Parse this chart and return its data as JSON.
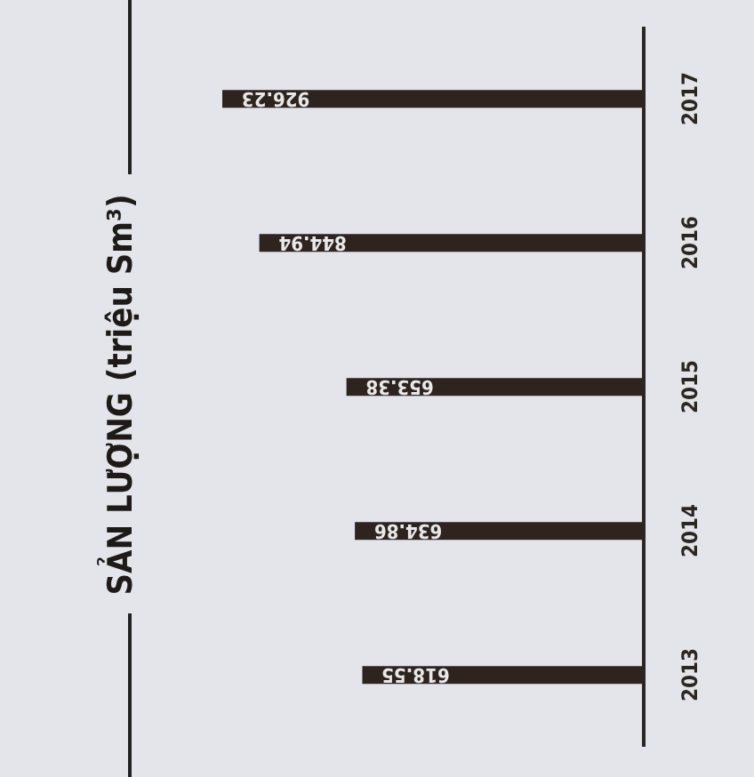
{
  "chart_data": {
    "type": "bar",
    "orientation": "horizontal",
    "title": "SẢN LƯỢNG (triệu Sm³)",
    "categories": [
      "2017",
      "2016",
      "2015",
      "2014",
      "2013"
    ],
    "values": [
      926.23,
      844.94,
      653.38,
      634.86,
      618.55
    ],
    "color": "#2e241f",
    "data_labels": true,
    "tick_labels": "y",
    "grid": false,
    "legend": false
  }
}
